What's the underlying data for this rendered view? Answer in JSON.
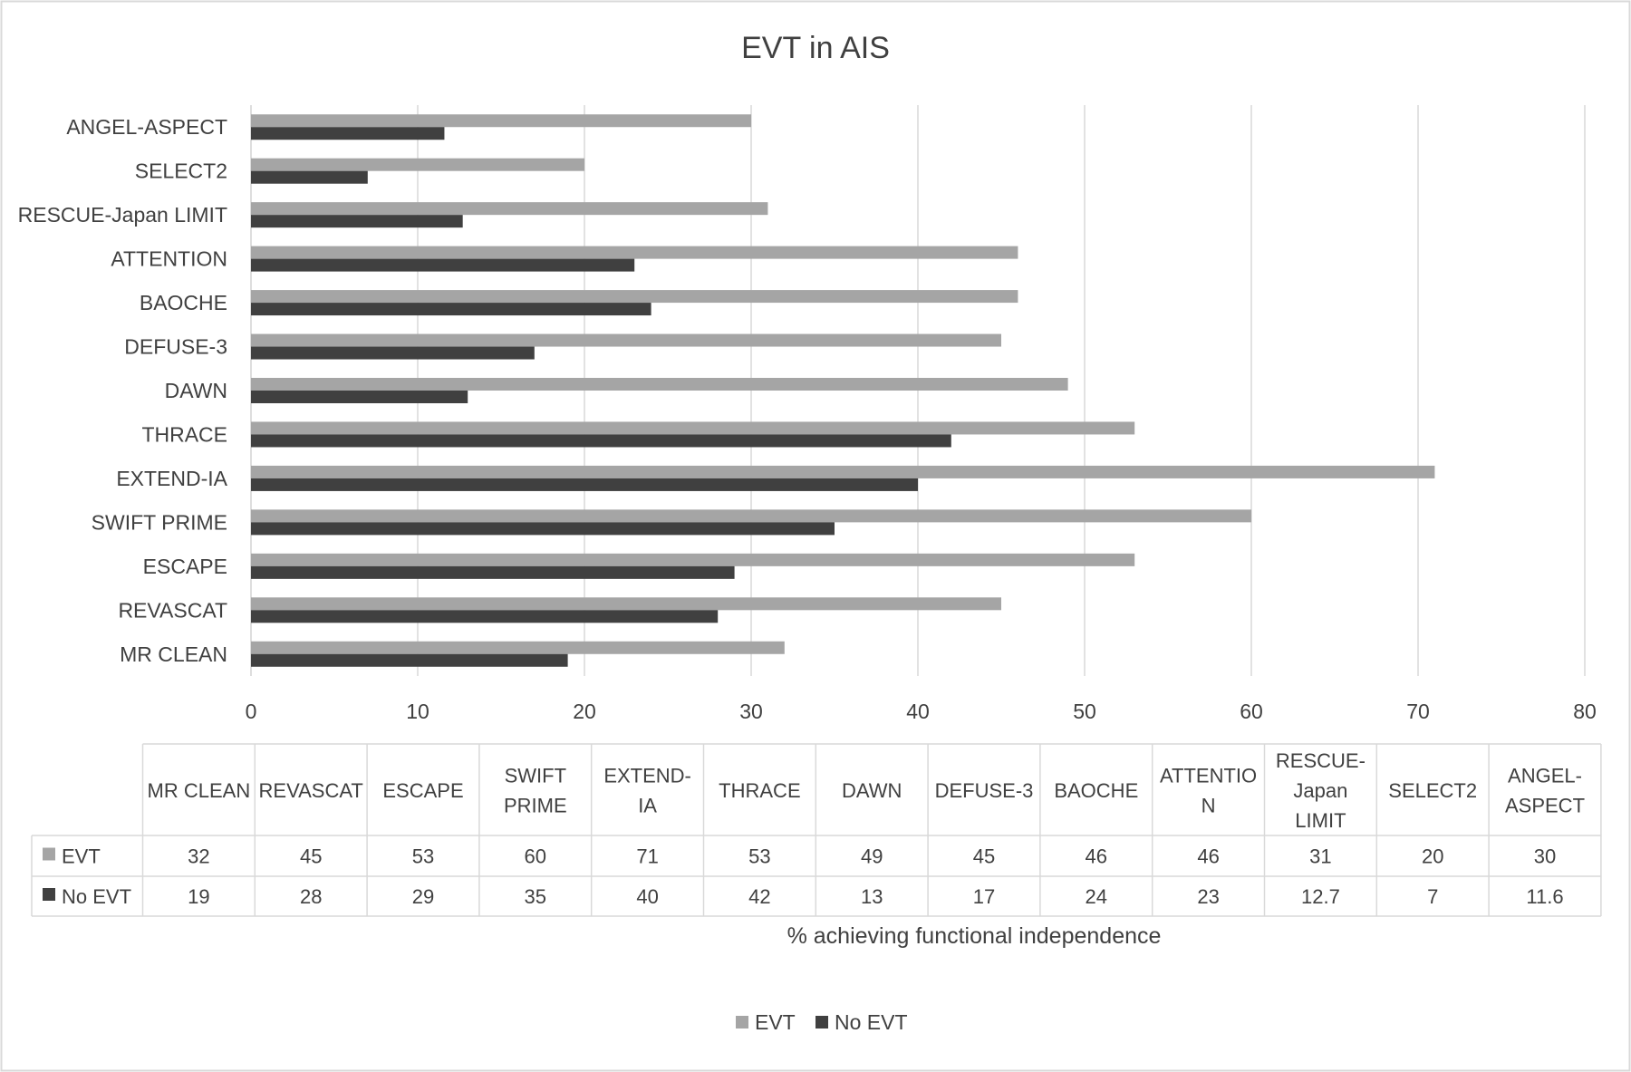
{
  "chart_data": {
    "type": "bar",
    "orientation": "horizontal",
    "title": "EVT in AIS",
    "xlabel": "% achieving functional independence",
    "ylabel": "",
    "xlim": [
      0,
      80
    ],
    "x_ticks": [
      "0",
      "10",
      "20",
      "30",
      "40",
      "50",
      "60",
      "70",
      "80"
    ],
    "grid": "vertical",
    "legend_position": "bottom",
    "categories": [
      "MR CLEAN",
      "REVASCAT",
      "ESCAPE",
      "SWIFT PRIME",
      "EXTEND-IA",
      "THRACE",
      "DAWN",
      "DEFUSE-3",
      "BAOCHE",
      "ATTENTION",
      "RESCUE-Japan LIMIT",
      "SELECT2",
      "ANGEL-ASPECT"
    ],
    "table_headers": [
      [
        "MR CLEAN"
      ],
      [
        "REVASCAT"
      ],
      [
        "ESCAPE"
      ],
      [
        "SWIFT",
        "PRIME"
      ],
      [
        "EXTEND-",
        "IA"
      ],
      [
        "THRACE"
      ],
      [
        "DAWN"
      ],
      [
        "DEFUSE-3"
      ],
      [
        "BAOCHE"
      ],
      [
        "ATTENTIO",
        "N"
      ],
      [
        "RESCUE-",
        "Japan",
        "LIMIT"
      ],
      [
        "SELECT2"
      ],
      [
        "ANGEL-",
        "ASPECT"
      ]
    ],
    "series": [
      {
        "name": "EVT",
        "color": "#a5a5a5",
        "values": [
          32,
          45,
          53,
          60,
          71,
          53,
          49,
          45,
          46,
          46,
          31,
          20,
          30
        ],
        "labels": [
          "32",
          "45",
          "53",
          "60",
          "71",
          "53",
          "49",
          "45",
          "46",
          "46",
          "31",
          "20",
          "30"
        ]
      },
      {
        "name": "No EVT",
        "color": "#404040",
        "values": [
          19,
          28,
          29,
          35,
          40,
          42,
          13,
          17,
          24,
          23,
          12.7,
          7,
          11.6
        ],
        "labels": [
          "19",
          "28",
          "29",
          "35",
          "40",
          "42",
          "13",
          "17",
          "24",
          "23",
          "12.7",
          "7",
          "11.6"
        ]
      }
    ]
  }
}
